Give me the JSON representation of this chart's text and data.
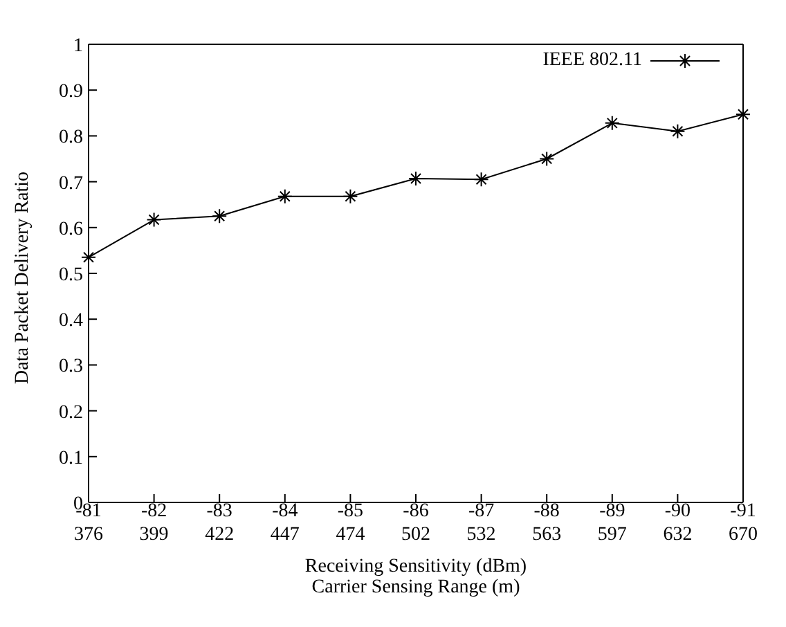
{
  "chart_data": {
    "type": "line",
    "xlabel": "Receiving Sensitivity (dBm)\nCarrier Sensing Range (m)",
    "ylabel": "Data Packet Delivery Ratio",
    "categories": [
      "-81\n376",
      "-82\n399",
      "-83\n422",
      "-84\n447",
      "-85\n474",
      "-86\n502",
      "-87\n532",
      "-88\n563",
      "-89\n597",
      "-90\n632",
      "-91\n670"
    ],
    "series": [
      {
        "name": "IEEE 802.11",
        "color": "#000000",
        "values": [
          0.535,
          0.617,
          0.625,
          0.668,
          0.668,
          0.707,
          0.705,
          0.75,
          0.828,
          0.81,
          0.847
        ]
      }
    ],
    "ylim": [
      0,
      1
    ],
    "yticks": [
      0,
      0.1,
      0.2,
      0.3,
      0.4,
      0.5,
      0.6,
      0.7,
      0.8,
      0.9,
      1
    ],
    "grid": false,
    "legend": "top right",
    "marker": "cross",
    "line_style": "solid"
  }
}
